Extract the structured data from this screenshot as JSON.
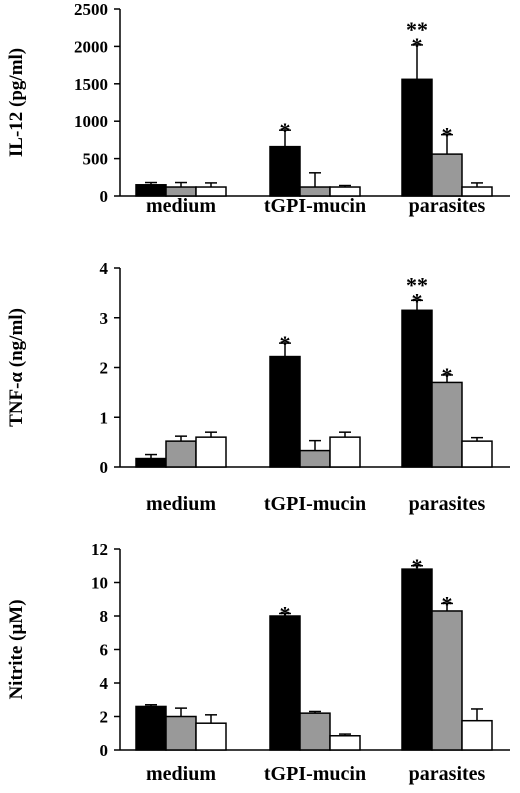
{
  "chart_data": [
    {
      "type": "bar",
      "ylabel": "IL-12 (pg/ml)",
      "xlabel": "",
      "ylim": [
        0,
        2500
      ],
      "yticks": [
        0,
        500,
        1000,
        1500,
        2000,
        2500
      ],
      "categories": [
        "medium",
        "tGPI-mucin",
        "parasites"
      ],
      "series": [
        {
          "color": "#000000",
          "values": [
            150,
            660,
            1560
          ],
          "errors": [
            30,
            220,
            460
          ]
        },
        {
          "color": "#999999",
          "values": [
            120,
            120,
            560
          ],
          "errors": [
            60,
            190,
            260
          ]
        },
        {
          "color": "#ffffff",
          "values": [
            120,
            120,
            120
          ],
          "errors": [
            55,
            20,
            55
          ]
        }
      ],
      "annotations": [
        {
          "category": 1,
          "series": 0,
          "text": [
            "*"
          ]
        },
        {
          "category": 2,
          "series": 0,
          "text": [
            "**",
            "*"
          ]
        },
        {
          "category": 2,
          "series": 1,
          "text": [
            "*"
          ]
        }
      ]
    },
    {
      "type": "bar",
      "ylabel": "TNF-α (ng/ml)",
      "xlabel": "",
      "ylim": [
        0,
        4
      ],
      "yticks": [
        0,
        1,
        2,
        3,
        4
      ],
      "categories": [
        "medium",
        "tGPI-mucin",
        "parasites"
      ],
      "series": [
        {
          "color": "#000000",
          "values": [
            0.17,
            2.22,
            3.15
          ],
          "errors": [
            0.08,
            0.27,
            0.2
          ]
        },
        {
          "color": "#999999",
          "values": [
            0.52,
            0.33,
            1.7
          ],
          "errors": [
            0.1,
            0.2,
            0.15
          ]
        },
        {
          "color": "#ffffff",
          "values": [
            0.6,
            0.6,
            0.52
          ],
          "errors": [
            0.1,
            0.1,
            0.07
          ]
        }
      ],
      "annotations": [
        {
          "category": 1,
          "series": 0,
          "text": [
            "*"
          ]
        },
        {
          "category": 2,
          "series": 0,
          "text": [
            "**",
            "*"
          ]
        },
        {
          "category": 2,
          "series": 1,
          "text": [
            "*"
          ]
        }
      ]
    },
    {
      "type": "bar",
      "ylabel": "Nitrite (µM)",
      "xlabel": "",
      "ylim": [
        0,
        12
      ],
      "yticks": [
        0,
        2,
        4,
        6,
        8,
        10,
        12
      ],
      "categories": [
        "medium",
        "tGPI-mucin",
        "parasites"
      ],
      "series": [
        {
          "color": "#000000",
          "values": [
            2.6,
            8.0,
            10.8
          ],
          "errors": [
            0.1,
            0.15,
            0.2
          ]
        },
        {
          "color": "#999999",
          "values": [
            2.0,
            2.2,
            8.3
          ],
          "errors": [
            0.5,
            0.1,
            0.45
          ]
        },
        {
          "color": "#ffffff",
          "values": [
            1.6,
            0.85,
            1.75
          ],
          "errors": [
            0.5,
            0.1,
            0.7
          ]
        }
      ],
      "annotations": [
        {
          "category": 1,
          "series": 0,
          "text": [
            "*"
          ]
        },
        {
          "category": 2,
          "series": 0,
          "text": [
            "*"
          ]
        },
        {
          "category": 2,
          "series": 1,
          "text": [
            "*"
          ]
        }
      ]
    }
  ]
}
